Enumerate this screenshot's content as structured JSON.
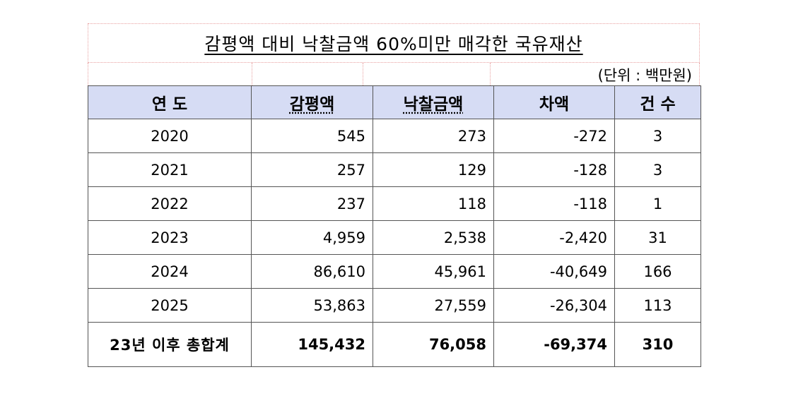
{
  "title": "감평액 대비 낙찰금액 60%미만 매각한 국유재산",
  "unit": "(단위 : 백만원)",
  "headers": [
    "연 도",
    "감평액",
    "낙찰금액",
    "차액",
    "건 수"
  ],
  "rows": [
    {
      "year": "2020",
      "appraisal": "545",
      "bid": "273",
      "diff": "-272",
      "count": "3"
    },
    {
      "year": "2021",
      "appraisal": "257",
      "bid": "129",
      "diff": "-128",
      "count": "3"
    },
    {
      "year": "2022",
      "appraisal": "237",
      "bid": "118",
      "diff": "-118",
      "count": "1"
    },
    {
      "year": "2023",
      "appraisal": "4,959",
      "bid": "2,538",
      "diff": "-2,420",
      "count": "31"
    },
    {
      "year": "2024",
      "appraisal": "86,610",
      "bid": "45,961",
      "diff": "-40,649",
      "count": "166"
    },
    {
      "year": "2025",
      "appraisal": "53,863",
      "bid": "27,559",
      "diff": "-26,304",
      "count": "113"
    }
  ],
  "total": {
    "label": "23년 이후 총합계",
    "appraisal": "145,432",
    "bid": "76,058",
    "diff": "-69,374",
    "count": "310"
  }
}
